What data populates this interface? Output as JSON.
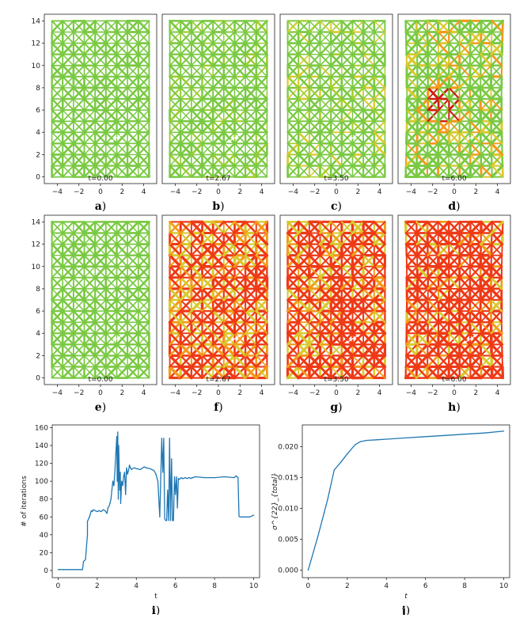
{
  "lattice_panels": {
    "xticks": [
      "−4",
      "−2",
      "0",
      "2",
      "4"
    ],
    "yticks": [
      "0",
      "2",
      "4",
      "6",
      "8",
      "10",
      "12",
      "14"
    ],
    "colors": {
      "green": "#7ac943",
      "yellow": "#d8c930",
      "orange": "#f39a1b",
      "red": "#ee3a16",
      "darkred": "#cc1e0e"
    },
    "panels": [
      {
        "letter": "a",
        "paren": ")",
        "time": "t=0.00",
        "state": "green"
      },
      {
        "letter": "b",
        "paren": ")",
        "time": "t=2.67",
        "state": "green2"
      },
      {
        "letter": "c",
        "paren": ")",
        "time": "t=3.50",
        "state": "greenyellow"
      },
      {
        "letter": "d",
        "paren": ")",
        "time": "t=6.00",
        "state": "mixed"
      },
      {
        "letter": "e",
        "paren": ")",
        "time": "t=0.00",
        "state": "green"
      },
      {
        "letter": "f",
        "paren": ")",
        "time": "t=2.67",
        "state": "red1"
      },
      {
        "letter": "g",
        "paren": ")",
        "time": "t=3.50",
        "state": "red2"
      },
      {
        "letter": "h",
        "paren": ")",
        "time": "t=6.00",
        "state": "red3"
      }
    ]
  },
  "chart_data": [
    {
      "type": "line",
      "letter": "i",
      "paren": ")",
      "xlabel": "t",
      "ylabel": "# of iterations",
      "xlim": [
        -0.3,
        10.3
      ],
      "ylim": [
        -8,
        163
      ],
      "xticks": [
        0,
        2,
        4,
        6,
        8,
        10
      ],
      "yticks": [
        0,
        20,
        40,
        60,
        80,
        100,
        120,
        140,
        160
      ],
      "color": "#1f77b4",
      "x": [
        0,
        0.3,
        0.6,
        0.9,
        1.2,
        1.25,
        1.3,
        1.4,
        1.5,
        1.5,
        1.6,
        1.7,
        1.75,
        1.8,
        1.9,
        2.0,
        2.1,
        2.2,
        2.3,
        2.4,
        2.5,
        2.55,
        2.6,
        2.65,
        2.7,
        2.75,
        2.8,
        2.85,
        2.9,
        2.95,
        3.0,
        3.02,
        3.05,
        3.08,
        3.1,
        3.12,
        3.15,
        3.18,
        3.2,
        3.25,
        3.3,
        3.35,
        3.4,
        3.45,
        3.5,
        3.55,
        3.6,
        3.65,
        3.7,
        3.75,
        3.8,
        3.9,
        4.0,
        4.2,
        4.4,
        4.5,
        4.7,
        4.9,
        5.0,
        5.1,
        5.2,
        5.3,
        5.35,
        5.4,
        5.45,
        5.5,
        5.55,
        5.6,
        5.65,
        5.7,
        5.75,
        5.8,
        5.85,
        5.9,
        5.95,
        6.0,
        6.05,
        6.1,
        6.15,
        6.2,
        6.25,
        6.3,
        6.35,
        6.4,
        6.5,
        6.6,
        6.7,
        6.8,
        6.85,
        6.9,
        7.0,
        7.5,
        8.0,
        8.5,
        9.0,
        9.1,
        9.2,
        9.25,
        9.3,
        9.5,
        9.8,
        10.0
      ],
      "y": [
        1,
        1,
        1,
        1,
        1,
        1,
        10,
        12,
        40,
        55,
        60,
        67,
        66,
        68,
        67,
        66,
        67,
        66,
        68,
        67,
        64,
        70,
        72,
        75,
        80,
        90,
        100,
        95,
        110,
        130,
        150,
        100,
        155,
        80,
        140,
        120,
        90,
        110,
        75,
        100,
        95,
        105,
        110,
        85,
        115,
        108,
        112,
        118,
        115,
        113,
        114,
        115,
        114,
        113,
        116,
        115,
        114,
        112,
        108,
        100,
        60,
        148,
        110,
        148,
        58,
        56,
        56,
        90,
        56,
        148,
        56,
        125,
        56,
        56,
        105,
        85,
        105,
        70,
        103,
        102,
        103,
        104,
        103,
        103,
        104,
        103,
        104,
        103,
        104,
        104,
        105,
        104,
        104,
        105,
        104,
        106,
        104,
        61,
        60,
        60,
        60,
        62
      ]
    },
    {
      "type": "line",
      "letter": "j",
      "paren": ")",
      "xlabel": "t",
      "ylabel": "σ^{22}_{total}",
      "xlim": [
        -0.3,
        10.3
      ],
      "ylim": [
        -0.0012,
        0.0235
      ],
      "xticks": [
        0,
        2,
        4,
        6,
        8,
        10
      ],
      "yticks": [
        0.0,
        0.005,
        0.01,
        0.015,
        0.02
      ],
      "ytick_labels": [
        "0.000",
        "0.005",
        "0.010",
        "0.015",
        "0.020"
      ],
      "color": "#1f77b4",
      "x": [
        0,
        0.5,
        1.0,
        1.33,
        1.6,
        2.0,
        2.4,
        2.67,
        3.0,
        3.5,
        4.0,
        5.0,
        6.0,
        7.0,
        8.0,
        9.0,
        10.0
      ],
      "y": [
        0,
        0.0055,
        0.0115,
        0.0162,
        0.0172,
        0.0188,
        0.0203,
        0.0208,
        0.021,
        0.0211,
        0.0212,
        0.0214,
        0.0216,
        0.0218,
        0.022,
        0.0222,
        0.0225
      ]
    }
  ]
}
